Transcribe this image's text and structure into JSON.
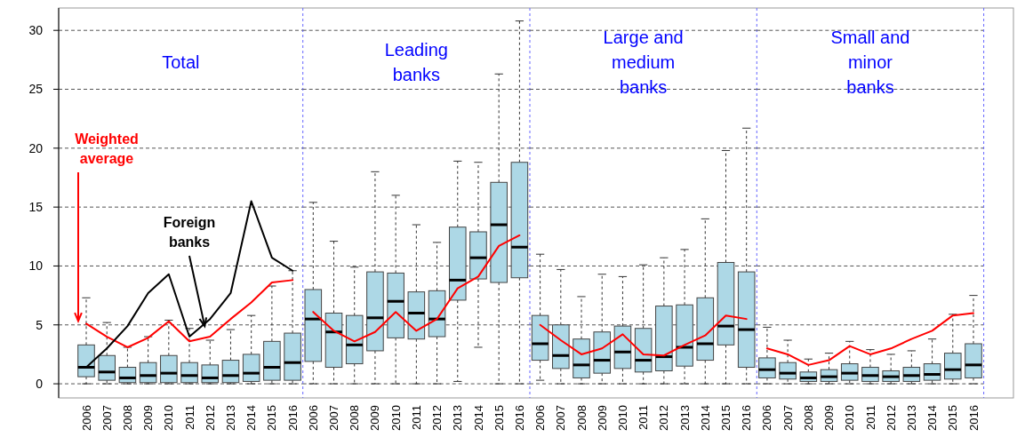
{
  "chart_data": [
    {
      "type": "box",
      "title": "Total",
      "categories": [
        "2006",
        "2007",
        "2008",
        "2009",
        "2010",
        "2011",
        "2012",
        "2013",
        "2014",
        "2015",
        "2016"
      ],
      "ylim": [
        -1.2,
        31.9
      ],
      "yticks": [
        0,
        5,
        10,
        15,
        20,
        25,
        30
      ],
      "grid": "y",
      "series": [
        {
          "color": "#add8e6",
          "boxes": [
            {
              "low": 0,
              "q1": 0.6,
              "median": 1.4,
              "q3": 3.3,
              "high": 7.3
            },
            {
              "low": 0,
              "q1": 0.3,
              "median": 1.0,
              "q3": 2.4,
              "high": 5.2
            },
            {
              "low": 0,
              "q1": 0.1,
              "median": 0.5,
              "q3": 1.4,
              "high": 3.1
            },
            {
              "low": 0,
              "q1": 0.1,
              "median": 0.7,
              "q3": 1.8,
              "high": 4.0
            },
            {
              "low": 0,
              "q1": 0.1,
              "median": 0.9,
              "q3": 2.4,
              "high": 5.4
            },
            {
              "low": 0,
              "q1": 0.1,
              "median": 0.7,
              "q3": 1.8,
              "high": 4.7
            },
            {
              "low": 0,
              "q1": 0.1,
              "median": 0.5,
              "q3": 1.6,
              "high": 3.7
            },
            {
              "low": 0,
              "q1": 0.1,
              "median": 0.7,
              "q3": 2.0,
              "high": 4.6
            },
            {
              "low": 0,
              "q1": 0.2,
              "median": 0.9,
              "q3": 2.5,
              "high": 5.8
            },
            {
              "low": 0,
              "q1": 0.3,
              "median": 1.4,
              "q3": 3.6,
              "high": 8.3
            },
            {
              "low": 0,
              "q1": 0.3,
              "median": 1.8,
              "q3": 4.3,
              "high": 9.6
            }
          ]
        },
        {
          "type": "line",
          "name": "Weighted average",
          "color": "#ff0000",
          "values": [
            5.1,
            4.0,
            3.1,
            3.9,
            5.3,
            3.6,
            4.0,
            5.5,
            6.9,
            8.6,
            8.8
          ]
        },
        {
          "type": "line",
          "name": "Foreign banks",
          "color": "#000000",
          "values": [
            1.4,
            3.0,
            4.9,
            7.7,
            9.3,
            4.0,
            5.5,
            7.7,
            15.5,
            10.7,
            9.6
          ]
        }
      ]
    },
    {
      "type": "box",
      "title": "Leading banks",
      "categories": [
        "2006",
        "2007",
        "2008",
        "2009",
        "2010",
        "2011",
        "2012",
        "2013",
        "2014",
        "2015",
        "2016"
      ],
      "ylim": [
        -1.2,
        31.9
      ],
      "yticks": [
        0,
        5,
        10,
        15,
        20,
        25,
        30
      ],
      "grid": "y",
      "tick_labels": "x",
      "series": [
        {
          "color": "#add8e6",
          "boxes": [
            {
              "low": 0,
              "q1": 1.9,
              "median": 5.5,
              "q3": 8.0,
              "high": 15.4
            },
            {
              "low": 0,
              "q1": 1.4,
              "median": 4.4,
              "q3": 6.0,
              "high": 12.1
            },
            {
              "low": 0,
              "q1": 1.7,
              "median": 3.3,
              "q3": 5.8,
              "high": 9.9
            },
            {
              "low": 0,
              "q1": 2.8,
              "median": 5.6,
              "q3": 9.5,
              "high": 18.0
            },
            {
              "low": 0,
              "q1": 3.9,
              "median": 7.0,
              "q3": 9.4,
              "high": 16.0
            },
            {
              "low": 0,
              "q1": 3.8,
              "median": 6.0,
              "q3": 7.8,
              "high": 13.5
            },
            {
              "low": 0,
              "q1": 4.0,
              "median": 5.5,
              "q3": 7.9,
              "high": 12.0
            },
            {
              "low": 0.2,
              "q1": 7.1,
              "median": 8.8,
              "q3": 13.3,
              "high": 18.9
            },
            {
              "low": 3.1,
              "q1": 8.9,
              "median": 10.7,
              "q3": 12.9,
              "high": 18.8
            },
            {
              "low": 0,
              "q1": 8.6,
              "median": 13.5,
              "q3": 17.1,
              "high": 26.3
            },
            {
              "low": 0,
              "q1": 9.0,
              "median": 11.6,
              "q3": 18.8,
              "high": 30.8
            }
          ]
        },
        {
          "type": "line",
          "color": "#ff0000",
          "values": [
            6.1,
            4.5,
            3.6,
            4.4,
            6.1,
            4.5,
            5.5,
            8.1,
            9.1,
            11.7,
            12.6
          ]
        }
      ]
    },
    {
      "type": "box",
      "title": "Large and medium banks",
      "categories": [
        "2006",
        "2007",
        "2008",
        "2009",
        "2010",
        "2011",
        "2012",
        "2013",
        "2014",
        "2015",
        "2016"
      ],
      "ylim": [
        -1.2,
        31.9
      ],
      "yticks": [
        0,
        5,
        10,
        15,
        20,
        25,
        30
      ],
      "grid": "y",
      "tick_labels": "x",
      "series": [
        {
          "color": "#add8e6",
          "boxes": [
            {
              "low": 0.3,
              "q1": 2.0,
              "median": 3.4,
              "q3": 5.8,
              "high": 11.0
            },
            {
              "low": 0,
              "q1": 1.3,
              "median": 2.4,
              "q3": 5.0,
              "high": 9.7
            },
            {
              "low": 0,
              "q1": 0.5,
              "median": 1.6,
              "q3": 3.8,
              "high": 7.4
            },
            {
              "low": 0,
              "q1": 0.9,
              "median": 2.0,
              "q3": 4.4,
              "high": 9.3
            },
            {
              "low": 0,
              "q1": 1.3,
              "median": 2.7,
              "q3": 4.9,
              "high": 9.1
            },
            {
              "low": 0,
              "q1": 1.0,
              "median": 2.0,
              "q3": 4.7,
              "high": 10.1
            },
            {
              "low": 0,
              "q1": 1.1,
              "median": 2.3,
              "q3": 6.6,
              "high": 10.7
            },
            {
              "low": 0,
              "q1": 1.5,
              "median": 3.1,
              "q3": 6.7,
              "high": 11.4
            },
            {
              "low": 0,
              "q1": 2.0,
              "median": 3.4,
              "q3": 7.3,
              "high": 14.0
            },
            {
              "low": 0,
              "q1": 3.3,
              "median": 4.9,
              "q3": 10.3,
              "high": 19.8
            },
            {
              "low": 0,
              "q1": 1.4,
              "median": 4.6,
              "q3": 9.5,
              "high": 21.7
            }
          ]
        },
        {
          "type": "line",
          "color": "#ff0000",
          "values": [
            5.0,
            3.7,
            2.5,
            3.0,
            4.2,
            2.5,
            2.4,
            3.3,
            4.1,
            5.8,
            5.5
          ]
        }
      ]
    },
    {
      "type": "box",
      "title": "Small and minor banks",
      "categories": [
        "2006",
        "2007",
        "2008",
        "2009",
        "2010",
        "2011",
        "2012",
        "2013",
        "2014",
        "2015",
        "2016"
      ],
      "ylim": [
        -1.2,
        31.9
      ],
      "yticks": [
        0,
        5,
        10,
        15,
        20,
        25,
        30
      ],
      "grid": "y",
      "tick_labels": "x",
      "series": [
        {
          "color": "#add8e6",
          "boxes": [
            {
              "low": 0,
              "q1": 0.5,
              "median": 1.2,
              "q3": 2.2,
              "high": 4.8
            },
            {
              "low": 0,
              "q1": 0.4,
              "median": 0.9,
              "q3": 1.8,
              "high": 3.7
            },
            {
              "low": 0,
              "q1": 0.2,
              "median": 0.5,
              "q3": 1.0,
              "high": 2.1
            },
            {
              "low": 0,
              "q1": 0.2,
              "median": 0.6,
              "q3": 1.2,
              "high": 2.6
            },
            {
              "low": 0,
              "q1": 0.3,
              "median": 0.9,
              "q3": 1.7,
              "high": 3.6
            },
            {
              "low": 0,
              "q1": 0.2,
              "median": 0.7,
              "q3": 1.4,
              "high": 2.9
            },
            {
              "low": 0,
              "q1": 0.2,
              "median": 0.6,
              "q3": 1.1,
              "high": 2.5
            },
            {
              "low": 0,
              "q1": 0.2,
              "median": 0.7,
              "q3": 1.4,
              "high": 2.8
            },
            {
              "low": 0,
              "q1": 0.3,
              "median": 0.8,
              "q3": 1.7,
              "high": 3.8
            },
            {
              "low": 0,
              "q1": 0.4,
              "median": 1.2,
              "q3": 2.6,
              "high": 5.9
            },
            {
              "low": 0,
              "q1": 0.5,
              "median": 1.6,
              "q3": 3.4,
              "high": 7.5
            }
          ]
        },
        {
          "type": "line",
          "color": "#ff0000",
          "values": [
            3.0,
            2.5,
            1.6,
            2.0,
            3.2,
            2.5,
            3.0,
            3.8,
            4.5,
            5.8,
            6.0
          ]
        }
      ]
    }
  ]
}
